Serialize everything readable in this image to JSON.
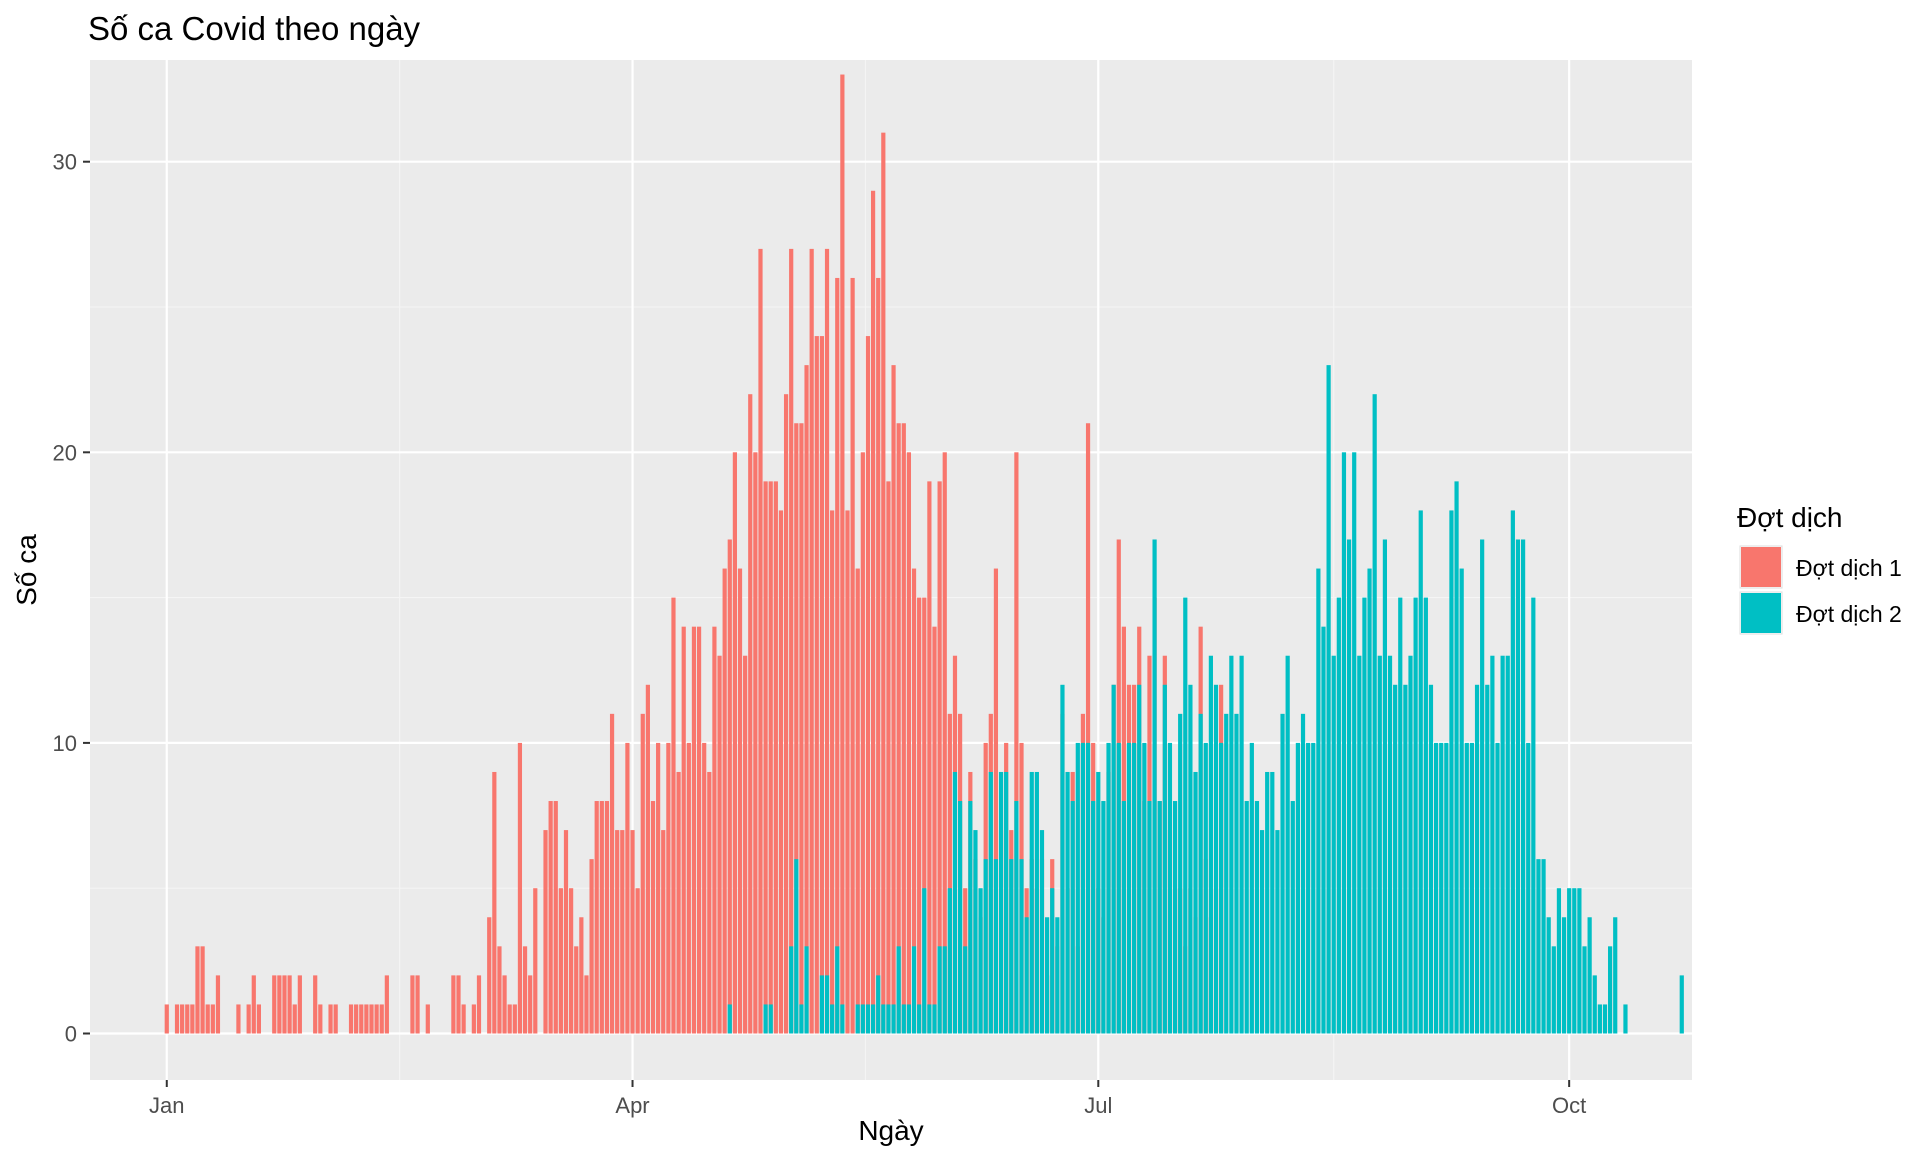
{
  "chart_data": {
    "type": "bar",
    "title": "Số ca Covid theo ngày",
    "xlabel": "Ngày",
    "ylabel": "Số ca",
    "x_start_date": "2020-01-01",
    "xlim": [
      "2019-12-17",
      "2020-10-25"
    ],
    "ylim": [
      -1.6,
      33.5
    ],
    "x_ticks": [
      {
        "date": "2020-01-01",
        "label": "Jan"
      },
      {
        "date": "2020-04-01",
        "label": "Apr"
      },
      {
        "date": "2020-07-01",
        "label": "Jul"
      },
      {
        "date": "2020-10-01",
        "label": "Oct"
      }
    ],
    "y_ticks": [
      0,
      10,
      20,
      30
    ],
    "grid": true,
    "legend": {
      "title": "Đợt dịch",
      "placement": "right"
    },
    "series": [
      {
        "name": "Đợt dịch 1",
        "color": "#F8766D",
        "start_date": "2020-01-01",
        "values": [
          1,
          0,
          1,
          1,
          1,
          1,
          3,
          3,
          1,
          1,
          2,
          0,
          0,
          0,
          1,
          0,
          1,
          2,
          1,
          0,
          0,
          2,
          2,
          2,
          2,
          1,
          2,
          0,
          0,
          2,
          1,
          0,
          1,
          1,
          0,
          0,
          1,
          1,
          1,
          1,
          1,
          1,
          1,
          2,
          0,
          0,
          0,
          0,
          2,
          2,
          0,
          1,
          0,
          0,
          0,
          0,
          2,
          2,
          1,
          0,
          1,
          2,
          0,
          4,
          9,
          3,
          2,
          1,
          1,
          10,
          3,
          2,
          5,
          0,
          7,
          8,
          8,
          5,
          7,
          5,
          3,
          4,
          2,
          6,
          8,
          8,
          8,
          11,
          7,
          7,
          10,
          7,
          5,
          11,
          12,
          8,
          10,
          7,
          10,
          15,
          9,
          14,
          10,
          14,
          14,
          10,
          9,
          14,
          13,
          16,
          17,
          20,
          16,
          13,
          22,
          20,
          27,
          19,
          19,
          19,
          18,
          22,
          27,
          21,
          21,
          23,
          27,
          24,
          24,
          27,
          18,
          26,
          33,
          18,
          26,
          16,
          20,
          24,
          29,
          26,
          31,
          19,
          23,
          21,
          21,
          20,
          16,
          15,
          15,
          19,
          14,
          19,
          20,
          11,
          13,
          11,
          5,
          9,
          6,
          4,
          10,
          11,
          16,
          7,
          10,
          7,
          20,
          10,
          5,
          6,
          5,
          6,
          2,
          6,
          3,
          11,
          5,
          9,
          3,
          11,
          21,
          10,
          5,
          4,
          9,
          12,
          17,
          14,
          12,
          12,
          14,
          8,
          13,
          15,
          8,
          13,
          7,
          5,
          5,
          3,
          5,
          4,
          14,
          6,
          4,
          5,
          12
        ],
        "extra_days": 0
      },
      {
        "name": "Đợt dịch 2",
        "color": "#00BFC4",
        "start_date": "2020-04-20",
        "values": [
          1,
          0,
          0,
          0,
          0,
          0,
          0,
          1,
          1,
          0,
          0,
          0,
          3,
          6,
          1,
          3,
          0,
          0,
          2,
          2,
          1,
          3,
          1,
          0,
          0,
          1,
          1,
          1,
          1,
          2,
          1,
          1,
          1,
          3,
          1,
          1,
          3,
          1,
          5,
          1,
          1,
          3,
          3,
          5,
          9,
          8,
          3,
          8,
          7,
          5,
          6,
          9,
          6,
          9,
          9,
          6,
          8,
          6,
          4,
          9,
          9,
          7,
          4,
          5,
          4,
          12,
          9,
          8,
          10,
          10,
          10,
          8,
          9,
          8,
          10,
          12,
          10,
          8,
          10,
          10,
          12,
          10,
          8,
          17,
          8,
          12,
          10,
          8,
          11,
          15,
          12,
          9,
          11,
          10,
          13,
          12,
          10,
          11,
          13,
          11,
          13,
          8,
          10,
          8,
          7,
          9,
          9,
          7,
          11,
          13,
          8,
          10,
          11,
          10,
          10,
          16,
          14,
          23,
          13,
          15,
          20,
          17,
          20,
          13,
          15,
          16,
          22,
          13,
          17,
          13,
          12,
          15,
          12,
          13,
          15,
          18,
          15,
          12,
          10,
          10,
          10,
          18,
          19,
          16,
          10,
          10,
          12,
          17,
          12,
          13,
          10,
          13,
          13,
          18,
          17,
          17,
          10,
          15,
          6,
          6,
          4,
          3,
          5,
          4,
          5,
          5,
          5,
          3,
          4,
          2,
          1,
          1,
          3,
          4,
          0,
          1,
          0,
          0,
          0,
          0,
          0,
          0,
          0,
          0,
          0,
          0,
          2
        ],
        "extra_days": 0
      }
    ]
  },
  "colors": {
    "panel_bg": "#EBEBEB",
    "grid_major": "#FFFFFF",
    "grid_minor": "#F5F5F5"
  }
}
